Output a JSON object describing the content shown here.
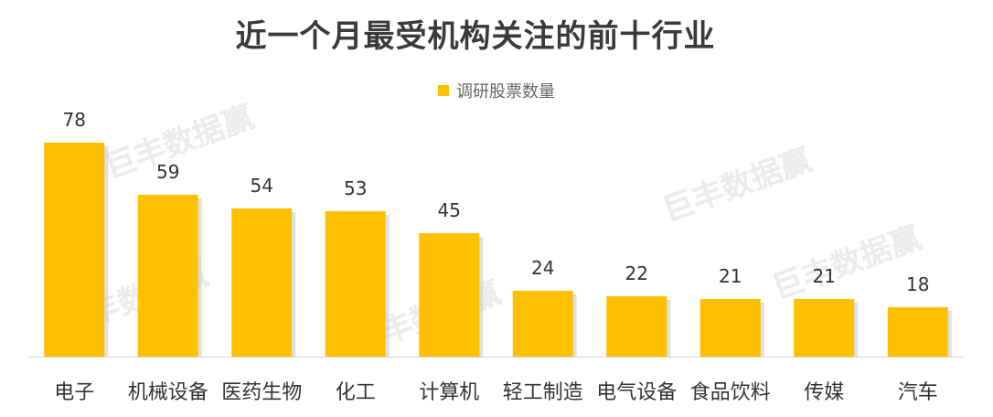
{
  "chart_data": {
    "type": "bar",
    "title": "近一个月最受机构关注的前十行业",
    "categories": [
      "电子",
      "机械设备",
      "医药生物",
      "化工",
      "计算机",
      "轻工制造",
      "电气设备",
      "食品饮料",
      "传媒",
      "汽车"
    ],
    "series": [
      {
        "name": "调研股票数量",
        "values": [
          78,
          59,
          54,
          53,
          45,
          24,
          22,
          21,
          21,
          18
        ]
      }
    ],
    "ylim": [
      0,
      90
    ],
    "grid": false,
    "legend_position": "top-center",
    "bar_color": "#FFC000",
    "data_labels": true
  },
  "watermark": "巨丰数据赢"
}
